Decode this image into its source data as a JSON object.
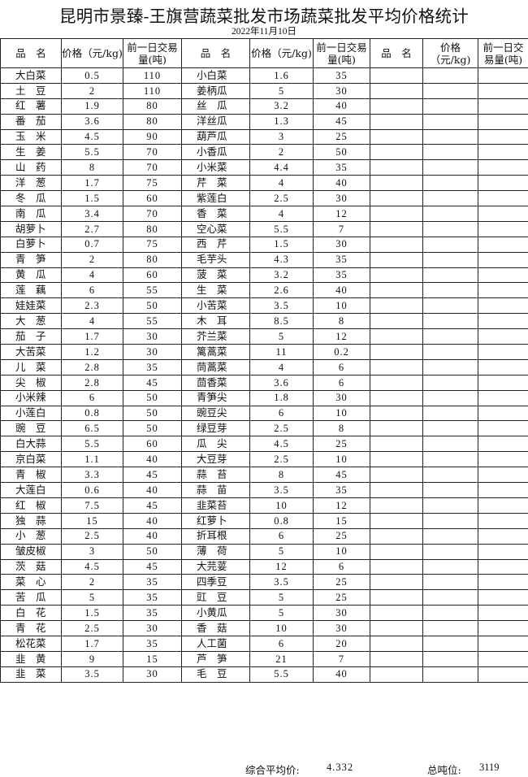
{
  "title": "昆明市景臻-王旗营蔬菜批发市场蔬菜批发平均价格统计",
  "date": "2022年11月10日",
  "headers": {
    "name": "品　名",
    "price": "价格（元/kg)",
    "volume": "前一日交易量(吨)"
  },
  "rows": [
    [
      [
        "大白菜",
        "0.5",
        "110"
      ],
      [
        "小白菜",
        "1.6",
        "35"
      ]
    ],
    [
      [
        "土　豆",
        "2",
        "110"
      ],
      [
        "姜柄瓜",
        "5",
        "30"
      ]
    ],
    [
      [
        "红　薯",
        "1.9",
        "80"
      ],
      [
        "丝　瓜",
        "3.2",
        "40"
      ]
    ],
    [
      [
        "番　茄",
        "3.6",
        "80"
      ],
      [
        "洋丝瓜",
        "1.3",
        "45"
      ]
    ],
    [
      [
        "玉　米",
        "4.5",
        "90"
      ],
      [
        "葫芦瓜",
        "3",
        "25"
      ]
    ],
    [
      [
        "生　姜",
        "5.5",
        "70"
      ],
      [
        "小香瓜",
        "2",
        "50"
      ]
    ],
    [
      [
        "山　药",
        "8",
        "70"
      ],
      [
        "小米菜",
        "4.4",
        "35"
      ]
    ],
    [
      [
        "洋　葱",
        "1.7",
        "75"
      ],
      [
        "芹　菜",
        "4",
        "40"
      ]
    ],
    [
      [
        "冬　瓜",
        "1.5",
        "60"
      ],
      [
        "紫莲白",
        "2.5",
        "30"
      ]
    ],
    [
      [
        "南　瓜",
        "3.4",
        "70"
      ],
      [
        "香　菜",
        "4",
        "12"
      ]
    ],
    [
      [
        "胡萝卜",
        "2.7",
        "80"
      ],
      [
        "空心菜",
        "5.5",
        "7"
      ]
    ],
    [
      [
        "白萝卜",
        "0.7",
        "75"
      ],
      [
        "西　芹",
        "1.5",
        "30"
      ]
    ],
    [
      [
        "青　笋",
        "2",
        "80"
      ],
      [
        "毛芋头",
        "4.3",
        "35"
      ]
    ],
    [
      [
        "黄　瓜",
        "4",
        "60"
      ],
      [
        "菠　菜",
        "3.2",
        "35"
      ]
    ],
    [
      [
        "莲　藕",
        "6",
        "55"
      ],
      [
        "生　菜",
        "2.6",
        "40"
      ]
    ],
    [
      [
        "娃娃菜",
        "2.3",
        "50"
      ],
      [
        "小苦菜",
        "3.5",
        "10"
      ]
    ],
    [
      [
        "大　葱",
        "4",
        "55"
      ],
      [
        "木　耳",
        "8.5",
        "8"
      ]
    ],
    [
      [
        "茄　子",
        "1.7",
        "30"
      ],
      [
        "芥兰菜",
        "5",
        "12"
      ]
    ],
    [
      [
        "大苦菜",
        "1.2",
        "30"
      ],
      [
        "篱蒿菜",
        "11",
        "0.2"
      ]
    ],
    [
      [
        "儿　菜",
        "2.8",
        "35"
      ],
      [
        "茼蒿菜",
        "4",
        "6"
      ]
    ],
    [
      [
        "尖　椒",
        "2.8",
        "45"
      ],
      [
        "茴香菜",
        "3.6",
        "6"
      ]
    ],
    [
      [
        "小米辣",
        "6",
        "50"
      ],
      [
        "青笋尖",
        "1.8",
        "30"
      ]
    ],
    [
      [
        "小莲白",
        "0.8",
        "50"
      ],
      [
        "豌豆尖",
        "6",
        "10"
      ]
    ],
    [
      [
        "豌　豆",
        "6.5",
        "50"
      ],
      [
        "绿豆芽",
        "2.5",
        "8"
      ]
    ],
    [
      [
        "白大蒜",
        "5.5",
        "60"
      ],
      [
        "瓜　尖",
        "4.5",
        "25"
      ]
    ],
    [
      [
        "京白菜",
        "1.1",
        "40"
      ],
      [
        "大豆芽",
        "2.5",
        "10"
      ]
    ],
    [
      [
        "青　椒",
        "3.3",
        "45"
      ],
      [
        "蒜　苔",
        "8",
        "45"
      ]
    ],
    [
      [
        "大莲白",
        "0.6",
        "40"
      ],
      [
        "蒜　苗",
        "3.5",
        "35"
      ]
    ],
    [
      [
        "红　椒",
        "7.5",
        "45"
      ],
      [
        "韭菜苔",
        "10",
        "12"
      ]
    ],
    [
      [
        "独　蒜",
        "15",
        "40"
      ],
      [
        "红萝卜",
        "0.8",
        "15"
      ]
    ],
    [
      [
        "小　葱",
        "2.5",
        "40"
      ],
      [
        "折耳根",
        "6",
        "25"
      ]
    ],
    [
      [
        "皱皮椒",
        "3",
        "50"
      ],
      [
        "薄　荷",
        "5",
        "10"
      ]
    ],
    [
      [
        "茨　菇",
        "4.5",
        "45"
      ],
      [
        "大芫荽",
        "12",
        "6"
      ]
    ],
    [
      [
        "菜　心",
        "2",
        "35"
      ],
      [
        "四季豆",
        "3.5",
        "25"
      ]
    ],
    [
      [
        "苦　瓜",
        "5",
        "35"
      ],
      [
        "豇　豆",
        "5",
        "25"
      ]
    ],
    [
      [
        "白　花",
        "1.5",
        "35"
      ],
      [
        "小黄瓜",
        "5",
        "30"
      ]
    ],
    [
      [
        "青　花",
        "2.5",
        "30"
      ],
      [
        "香　菇",
        "10",
        "30"
      ]
    ],
    [
      [
        "松花菜",
        "1.7",
        "35"
      ],
      [
        "人工菌",
        "6",
        "20"
      ]
    ],
    [
      [
        "韭　黄",
        "9",
        "15"
      ],
      [
        "芦　笋",
        "21",
        "7"
      ]
    ],
    [
      [
        "韭　菜",
        "3.5",
        "30"
      ],
      [
        "毛　豆",
        "5.5",
        "40"
      ]
    ]
  ],
  "footer": {
    "avg_label": "综合平均价:",
    "avg_value": "4.332",
    "total_label": "总吨位:",
    "total_value": "3119"
  }
}
